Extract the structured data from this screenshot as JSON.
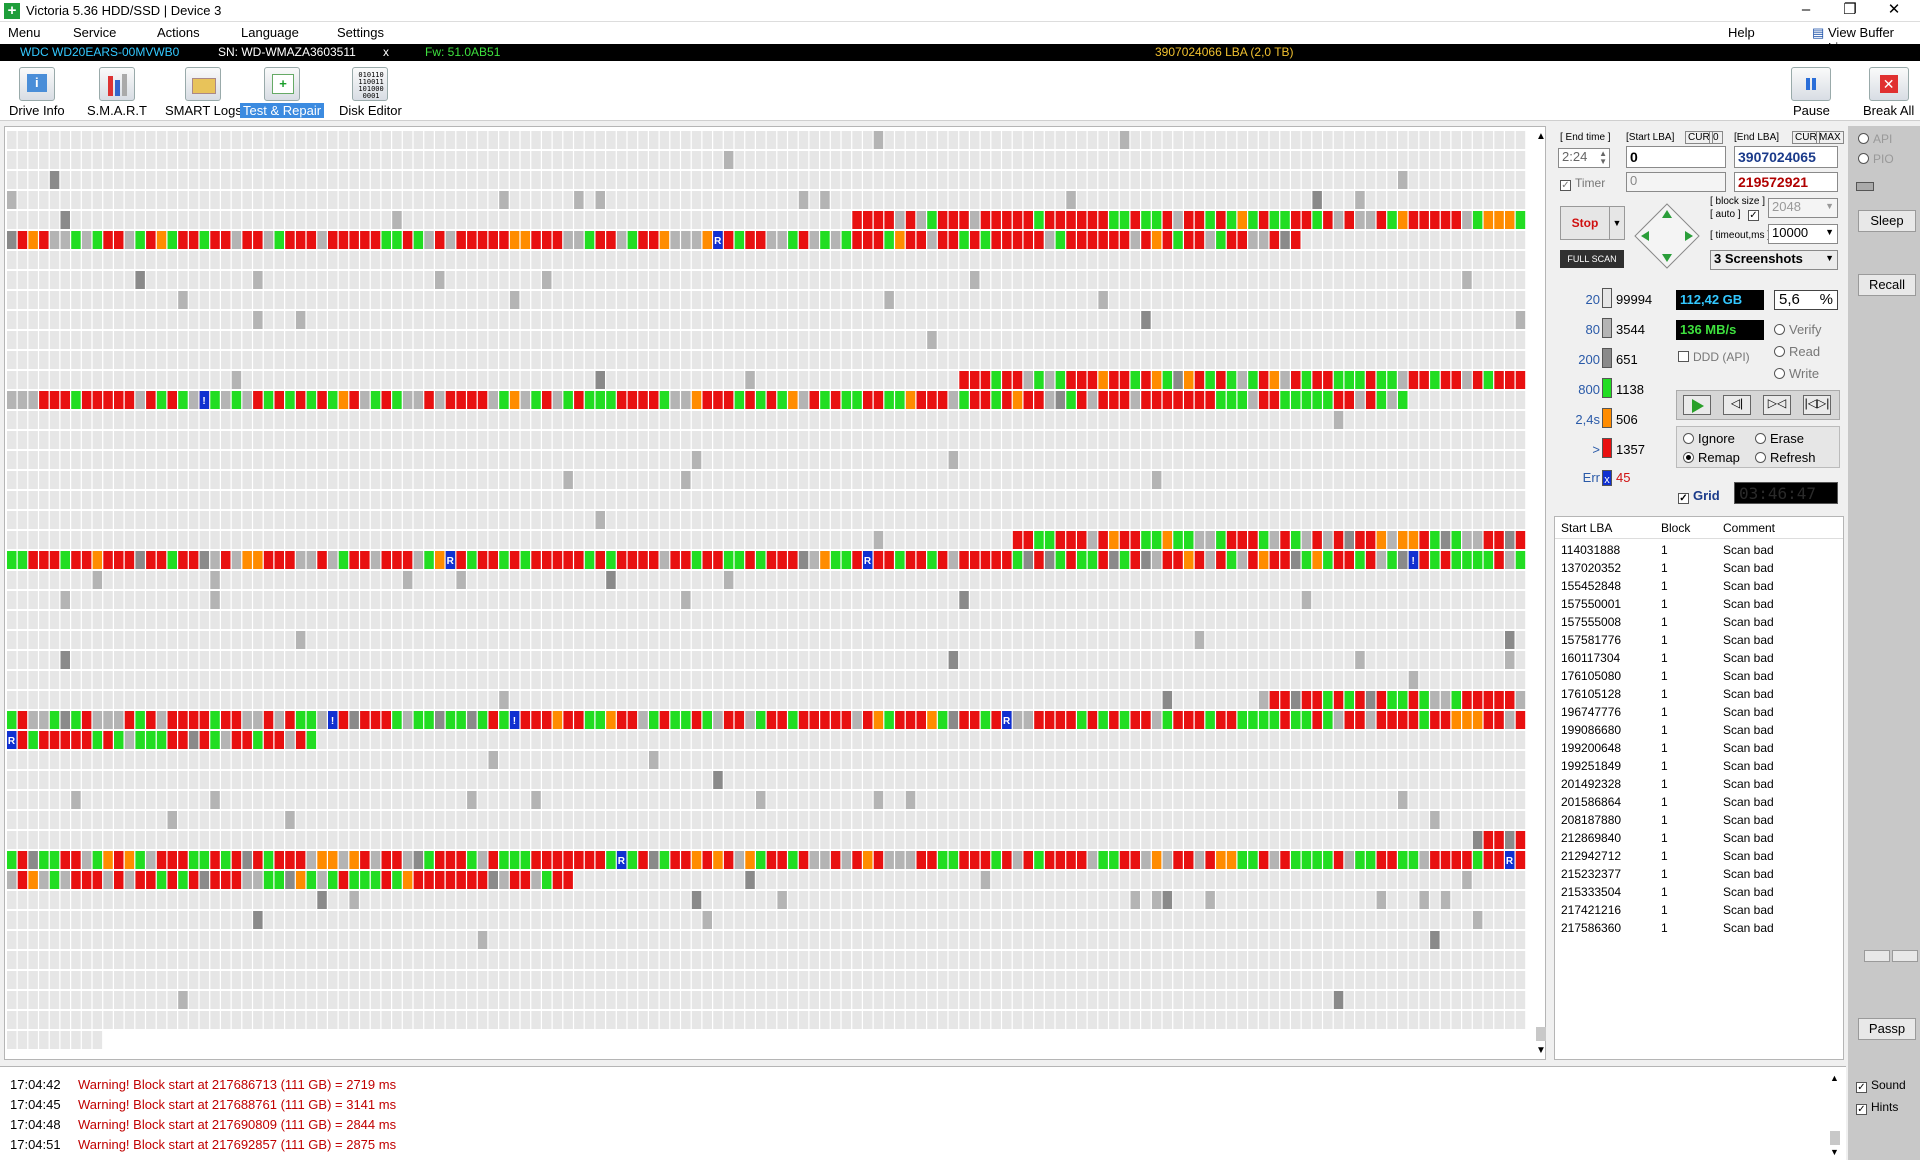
{
  "window": {
    "title": "Victoria 5.36 HDD/SSD | Device 3",
    "app_icon": "plus-cross-icon"
  },
  "menu": {
    "items": [
      "Menu",
      "Service",
      "Actions",
      "Language",
      "Settings"
    ],
    "help": "Help",
    "view_buffer": "View Buffer Live"
  },
  "drive": {
    "model": "WDC WD20EARS-00MVWB0",
    "serial": "SN: WD-WMAZA3603511",
    "close": "x",
    "firmware": "Fw: 51.0AB51",
    "capacity": "3907024066 LBA (2,0 TB)"
  },
  "toolbar": {
    "buttons": [
      {
        "label": "Drive Info",
        "icon": "info-icon"
      },
      {
        "label": "S.M.A.R.T",
        "icon": "smart-tubes-icon"
      },
      {
        "label": "SMART Logs",
        "icon": "folder-icon"
      },
      {
        "label": "Test & Repair",
        "icon": "medkit-icon",
        "active": true
      },
      {
        "label": "Disk Editor",
        "icon": "binary-icon"
      }
    ],
    "pause": "Pause",
    "break_all": "Break All"
  },
  "controls": {
    "end_time_label": "[ End time ]",
    "start_lba_label": "[Start LBA]",
    "cur": "CUR",
    "zero": "0",
    "end_lba_label": "[End LBA]",
    "max": "MAX",
    "time_value": "2:24",
    "start_lba": "0",
    "end_lba": "3907024065",
    "timer_label": "Timer",
    "timer_value": "0",
    "current_lba": "219572921",
    "stop": "Stop",
    "full_scan": "FULL SCAN",
    "block_size_label": "[ block size ]",
    "auto_label": "[ auto ]",
    "block_size": "2048",
    "timeout_label": "[ timeout,ms ]",
    "timeout": "10000",
    "screenshots": "3 Screenshots"
  },
  "stats": {
    "gb": "112,42 GB",
    "percent": "5,6",
    "pct_sign": "%",
    "speed": "136 MB/s",
    "verify": "Verify",
    "read": "Read",
    "write": "Write",
    "ddd": "DDD (API)",
    "ignore": "Ignore",
    "erase": "Erase",
    "remap": "Remap",
    "refresh": "Refresh",
    "grid": "Grid",
    "clock": "03:46:47"
  },
  "legend": [
    {
      "label": "20",
      "count": "99994",
      "color": "#e6e6e6"
    },
    {
      "label": "80",
      "count": "3544",
      "color": "#b4b4b4"
    },
    {
      "label": "200",
      "count": "651",
      "color": "#8a8a8a"
    },
    {
      "label": "800",
      "count": "1138",
      "color": "#22dd22"
    },
    {
      "label": "2,4s",
      "count": "506",
      "color": "#ff8c00"
    },
    {
      "label": ">",
      "count": "1357",
      "color": "#e81010"
    },
    {
      "label": "Err",
      "count": "45",
      "color": "#1030d0",
      "mark": "x"
    }
  ],
  "right_side": {
    "api": "API",
    "pio": "PIO",
    "sleep": "Sleep",
    "recall": "Recall",
    "passp": "Passp",
    "sound": "Sound",
    "hints": "Hints"
  },
  "table": {
    "headers": [
      "Start LBA",
      "Block",
      "Comment"
    ],
    "rows": [
      [
        "114031888",
        "1",
        "Scan bad"
      ],
      [
        "137020352",
        "1",
        "Scan bad"
      ],
      [
        "155452848",
        "1",
        "Scan bad"
      ],
      [
        "157550001",
        "1",
        "Scan bad"
      ],
      [
        "157555008",
        "1",
        "Scan bad"
      ],
      [
        "157581776",
        "1",
        "Scan bad"
      ],
      [
        "160117304",
        "1",
        "Scan bad"
      ],
      [
        "176105080",
        "1",
        "Scan bad"
      ],
      [
        "176105128",
        "1",
        "Scan bad"
      ],
      [
        "196747776",
        "1",
        "Scan bad"
      ],
      [
        "199086680",
        "1",
        "Scan bad"
      ],
      [
        "199200648",
        "1",
        "Scan bad"
      ],
      [
        "199251849",
        "1",
        "Scan bad"
      ],
      [
        "201492328",
        "1",
        "Scan bad"
      ],
      [
        "201586864",
        "1",
        "Scan bad"
      ],
      [
        "208187880",
        "1",
        "Scan bad"
      ],
      [
        "212869840",
        "1",
        "Scan bad"
      ],
      [
        "212942712",
        "1",
        "Scan bad"
      ],
      [
        "215232377",
        "1",
        "Scan bad"
      ],
      [
        "215333504",
        "1",
        "Scan bad"
      ],
      [
        "217421216",
        "1",
        "Scan bad"
      ],
      [
        "217586360",
        "1",
        "Scan bad"
      ]
    ]
  },
  "log": [
    {
      "time": "17:04:42",
      "msg": "Warning! Block start at 217686713 (111 GB)  = 2719 ms"
    },
    {
      "time": "17:04:45",
      "msg": "Warning! Block start at 217688761 (111 GB)  = 3141 ms"
    },
    {
      "time": "17:04:48",
      "msg": "Warning! Block start at 217690809 (111 GB)  = 2844 ms"
    },
    {
      "time": "17:04:51",
      "msg": "Warning! Block start at 217692857 (111 GB)  = 2875 ms"
    }
  ],
  "map": {
    "marker_R": "R",
    "marker_bang": "!"
  }
}
